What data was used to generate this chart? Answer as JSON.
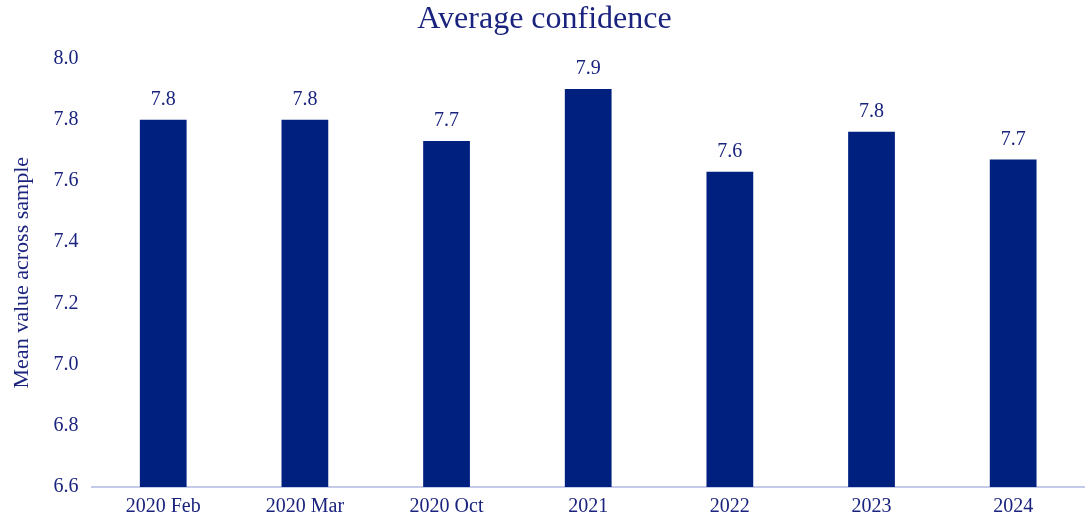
{
  "chart_data": {
    "type": "bar",
    "title": "Average confidence",
    "ylabel": "Mean value across sample",
    "categories": [
      "2020 Feb",
      "2020 Mar",
      "2020 Oct",
      "2021",
      "2022",
      "2023",
      "2024"
    ],
    "values": [
      7.8,
      7.8,
      7.73,
      7.9,
      7.63,
      7.76,
      7.67
    ],
    "value_labels": [
      "7.8",
      "7.8",
      "7.7",
      "7.9",
      "7.6",
      "7.8",
      "7.7"
    ],
    "color": "#00207f",
    "ylim": [
      6.6,
      8.0
    ],
    "yticks": [
      {
        "value": 6.6,
        "label": "6.6"
      },
      {
        "value": 6.8,
        "label": "6.8"
      },
      {
        "value": 7.0,
        "label": "7.0"
      },
      {
        "value": 7.2,
        "label": "7.2"
      },
      {
        "value": 7.4,
        "label": "7.4"
      },
      {
        "value": 7.6,
        "label": "7.6"
      },
      {
        "value": 7.8,
        "label": "7.8"
      },
      {
        "value": 8.0,
        "label": "8.0"
      }
    ],
    "grid": false,
    "legend": false
  }
}
